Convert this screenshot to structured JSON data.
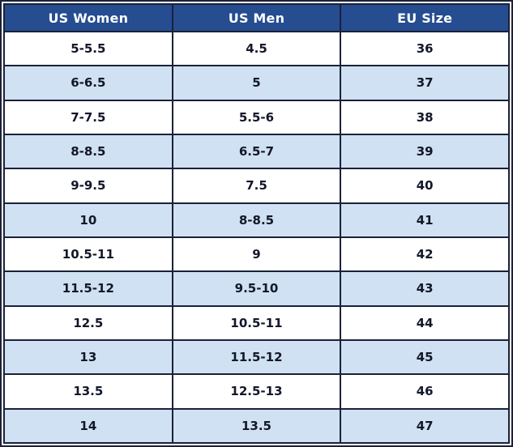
{
  "chart_data": {
    "type": "table",
    "columns": [
      "US Women",
      "US Men",
      "EU Size"
    ],
    "rows": [
      [
        "5-5.5",
        "4.5",
        "36"
      ],
      [
        "6-6.5",
        "5",
        "37"
      ],
      [
        "7-7.5",
        "5.5-6",
        "38"
      ],
      [
        "8-8.5",
        "6.5-7",
        "39"
      ],
      [
        "9-9.5",
        "7.5",
        "40"
      ],
      [
        "10",
        "8-8.5",
        "41"
      ],
      [
        "10.5-11",
        "9",
        "42"
      ],
      [
        "11.5-12",
        "9.5-10",
        "43"
      ],
      [
        "12.5",
        "10.5-11",
        "44"
      ],
      [
        "13",
        "11.5-12",
        "45"
      ],
      [
        "13.5",
        "12.5-13",
        "46"
      ],
      [
        "14",
        "13.5",
        "47"
      ]
    ],
    "layout": {
      "header_row": true,
      "zebra_striping": true,
      "striped_rows": "even"
    }
  },
  "colors": {
    "header_bg": "#254d90",
    "header_text": "#ffffff",
    "row_bg": "#ffffff",
    "row_alt_bg": "#cfe1f2",
    "cell_text": "#131729",
    "border": "#1b2138"
  }
}
